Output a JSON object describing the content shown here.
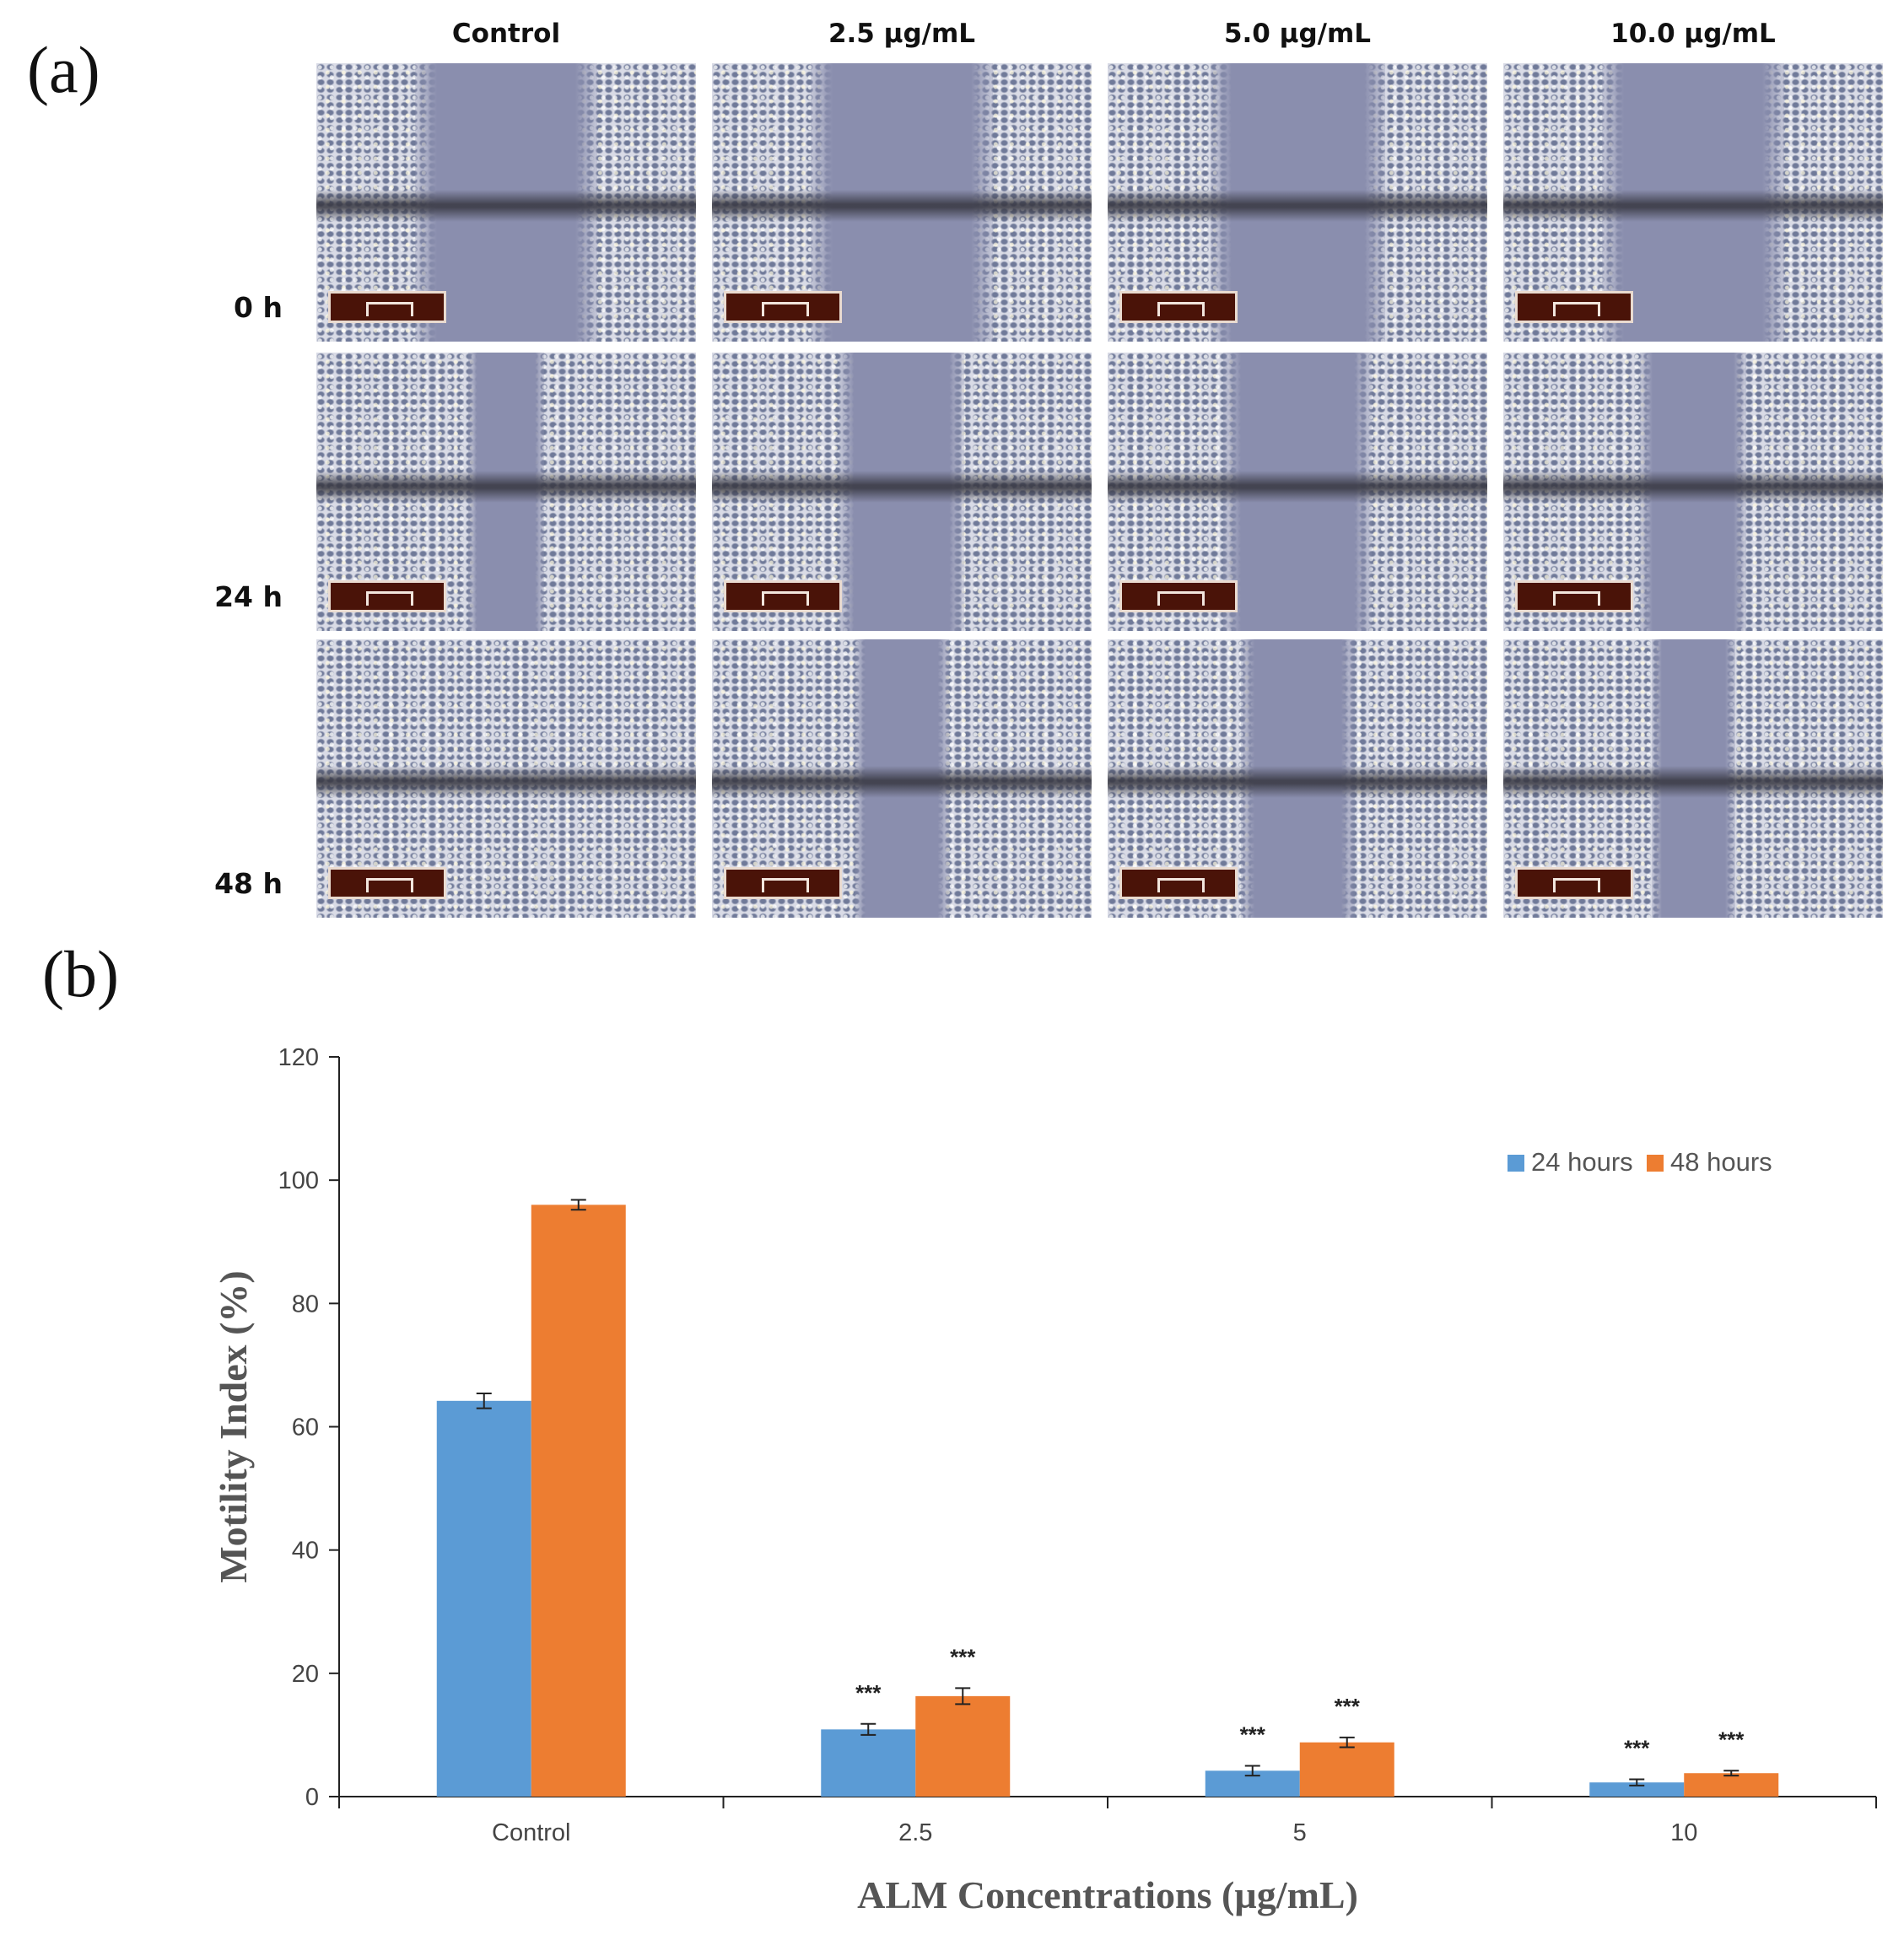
{
  "panel_a": {
    "letter": "(a)",
    "column_headers": [
      "Control",
      "2.5 µg/mL",
      "5.0 µg/mL",
      "10.0 µg/mL"
    ],
    "row_labels": [
      "0 h",
      "24 h",
      "48 h"
    ],
    "gap_fraction": [
      [
        0.48,
        0.48,
        0.46,
        0.48
      ],
      [
        0.2,
        0.33,
        0.39,
        0.28
      ],
      [
        0.0,
        0.25,
        0.3,
        0.22
      ]
    ],
    "colors": {
      "cell_light": "#d9dbe6",
      "cell_dark": "#707a99",
      "gap": "#8a8eae",
      "scale_bar": "#4a1308"
    }
  },
  "panel_b": {
    "letter": "(b)"
  },
  "chart_data": {
    "type": "bar",
    "categories": [
      "Control",
      "2.5",
      "5",
      "10"
    ],
    "series": [
      {
        "name": "24 hours",
        "color": "#5b9bd5",
        "values": [
          64.2,
          10.9,
          4.2,
          2.3
        ],
        "errors": [
          1.2,
          0.9,
          0.8,
          0.5
        ],
        "annotations": [
          "",
          "***",
          "***",
          "***"
        ]
      },
      {
        "name": "48 hours",
        "color": "#ed7d31",
        "values": [
          96.0,
          16.3,
          8.8,
          3.8
        ],
        "errors": [
          0.8,
          1.3,
          0.8,
          0.4
        ],
        "annotations": [
          "",
          "***",
          "***",
          "***"
        ]
      }
    ],
    "xlabel": "ALM Concentrations (µg/mL)",
    "ylabel": "Motility Index (%)",
    "ylim": [
      0,
      120
    ],
    "yticks": [
      0,
      20,
      40,
      60,
      80,
      100,
      120
    ],
    "legend_position": "top-right",
    "grid": false
  }
}
